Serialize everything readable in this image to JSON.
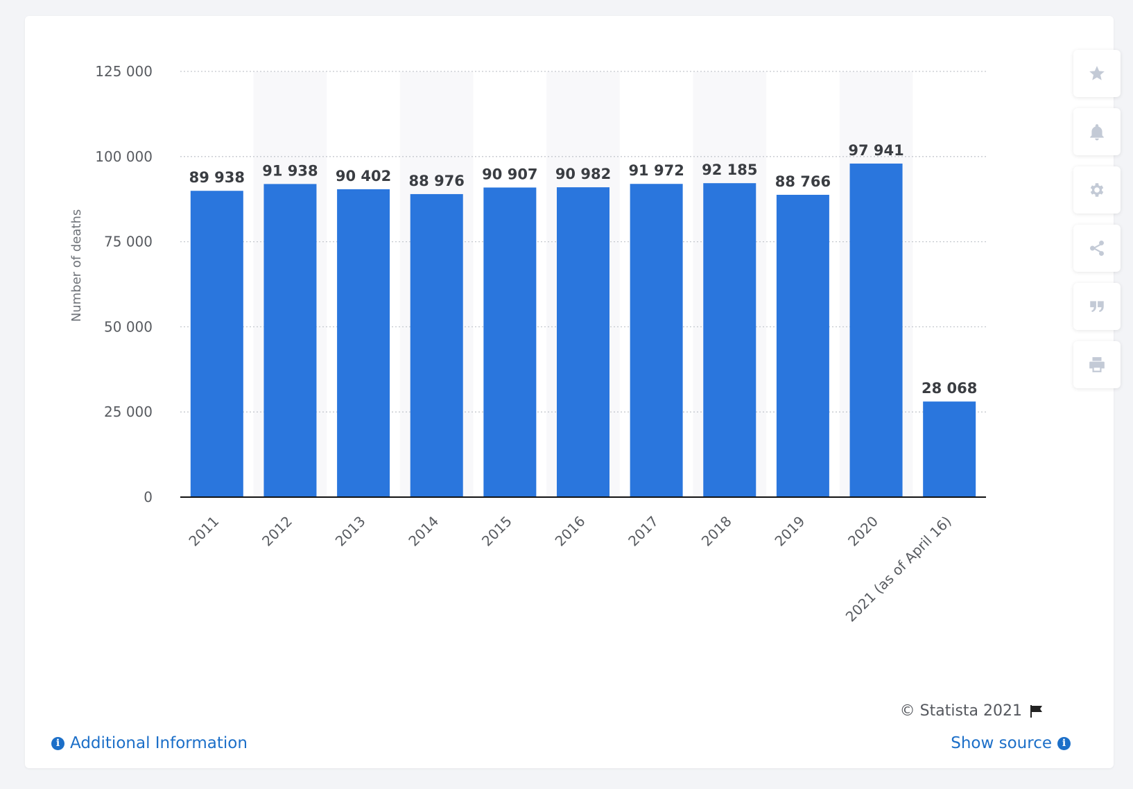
{
  "chart_data": {
    "type": "bar",
    "categories": [
      "2011",
      "2012",
      "2013",
      "2014",
      "2015",
      "2016",
      "2017",
      "2018",
      "2019",
      "2020",
      "2021 (as of April 16)"
    ],
    "values": [
      89938,
      91938,
      90402,
      88976,
      90907,
      90982,
      91972,
      92185,
      88766,
      97941,
      28068
    ],
    "value_labels": [
      "89 938",
      "91 938",
      "90 402",
      "88 976",
      "90 907",
      "90 982",
      "91 972",
      "92 185",
      "88 766",
      "97 941",
      "28 068"
    ],
    "ylabel": "Number of deaths",
    "ylim": [
      0,
      125000
    ],
    "yticks": [
      0,
      25000,
      50000,
      75000,
      100000,
      125000
    ],
    "ytick_labels": [
      "0",
      "25 000",
      "50 000",
      "75 000",
      "100 000",
      "125 000"
    ],
    "grid": true,
    "bar_color": "#2a76dd"
  },
  "footer": {
    "copyright": "© Statista 2021",
    "additional_info": "Additional Information",
    "show_source": "Show source"
  },
  "toolbar": {
    "icons": [
      "star-icon",
      "bell-icon",
      "gear-icon",
      "share-icon",
      "quote-icon",
      "print-icon"
    ]
  }
}
